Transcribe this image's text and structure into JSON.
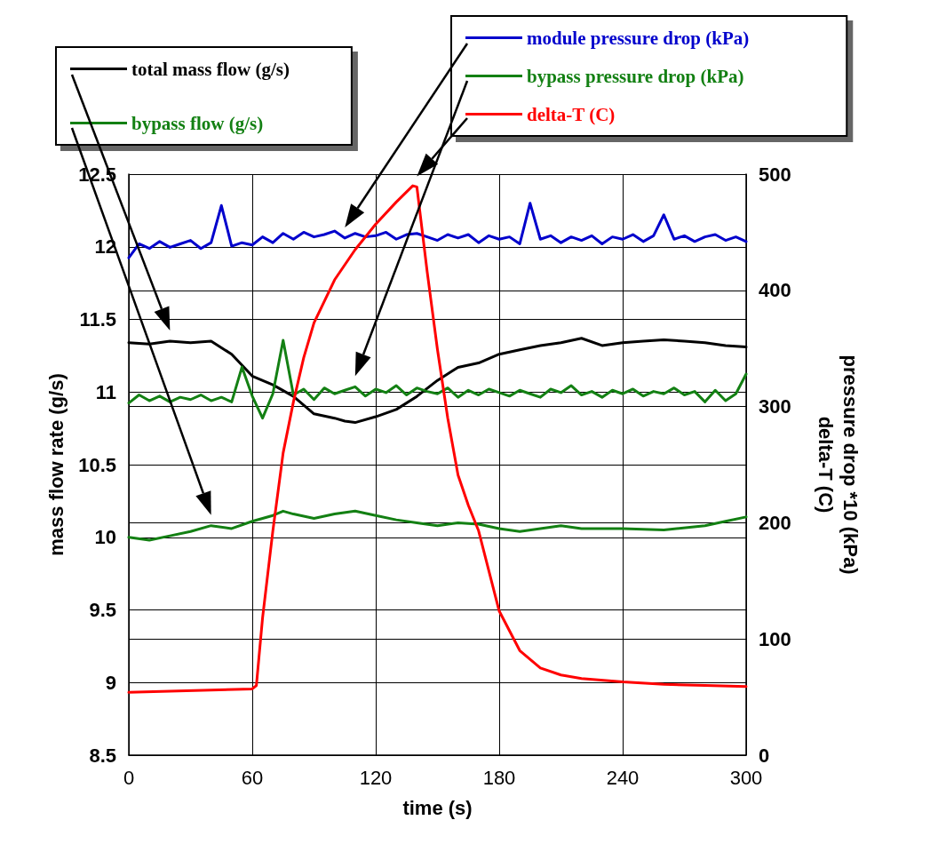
{
  "chart_data": {
    "type": "line",
    "xlabel": "time (s)",
    "ylabel": "mass flow rate (g/s)",
    "y2label": "pressure drop *10 (kPa)\ndelta-T (C)",
    "xlim": [
      0,
      300
    ],
    "xticks": [
      0,
      60,
      120,
      180,
      240,
      300
    ],
    "ylim": [
      8.5,
      12.5
    ],
    "yticks": [
      8.5,
      9,
      9.5,
      10,
      10.5,
      11,
      11.5,
      12,
      12.5
    ],
    "y2lim": [
      0,
      500
    ],
    "y2ticks": [
      0,
      100,
      200,
      300,
      400,
      500
    ],
    "grid": true,
    "legend": "top",
    "marker": "none",
    "line_style": "solid",
    "series": [
      {
        "name": "total mass flow (g/s)",
        "color": "#000000",
        "x": [
          0,
          10,
          20,
          30,
          40,
          50,
          60,
          70,
          80,
          90,
          100,
          105,
          110,
          120,
          130,
          140,
          150,
          160,
          170,
          180,
          190,
          200,
          210,
          220,
          230,
          240,
          250,
          260,
          270,
          280,
          290,
          300
        ],
        "values": [
          11.34,
          11.33,
          11.35,
          11.34,
          11.35,
          11.26,
          11.11,
          11.05,
          10.97,
          10.85,
          10.82,
          10.8,
          10.79,
          10.83,
          10.88,
          10.97,
          11.08,
          11.17,
          11.2,
          11.26,
          11.29,
          11.32,
          11.34,
          11.37,
          11.32,
          11.34,
          11.35,
          11.36,
          11.35,
          11.34,
          11.32,
          11.31
        ]
      },
      {
        "name": "bypass flow (g/s)",
        "color": "#138013",
        "x": [
          0,
          10,
          20,
          30,
          40,
          50,
          60,
          70,
          75,
          80,
          90,
          100,
          110,
          120,
          130,
          140,
          150,
          160,
          170,
          180,
          190,
          200,
          210,
          220,
          240,
          260,
          280,
          290,
          300
        ],
        "values": [
          10.0,
          9.98,
          10.01,
          10.04,
          10.08,
          10.06,
          10.11,
          10.15,
          10.18,
          10.16,
          10.13,
          10.16,
          10.18,
          10.15,
          10.12,
          10.1,
          10.08,
          10.1,
          10.09,
          10.06,
          10.04,
          10.06,
          10.08,
          10.06,
          10.06,
          10.05,
          10.08,
          10.11,
          10.14
        ]
      },
      {
        "name": "module pressure drop (kPa)",
        "color": "#0000cc",
        "axis": "y2",
        "x": [
          0,
          5,
          10,
          15,
          20,
          25,
          30,
          35,
          40,
          45,
          50,
          55,
          60,
          65,
          70,
          75,
          80,
          85,
          90,
          95,
          100,
          105,
          110,
          115,
          120,
          125,
          130,
          135,
          140,
          145,
          150,
          155,
          160,
          165,
          170,
          175,
          180,
          185,
          190,
          195,
          200,
          205,
          210,
          215,
          220,
          225,
          230,
          235,
          240,
          245,
          250,
          255,
          260,
          265,
          270,
          275,
          280,
          285,
          290,
          295,
          300
        ],
        "values": [
          428,
          440,
          436,
          442,
          437,
          440,
          443,
          436,
          441,
          473,
          438,
          441,
          439,
          446,
          441,
          449,
          444,
          450,
          446,
          448,
          451,
          445,
          449,
          446,
          447,
          450,
          444,
          448,
          449,
          446,
          443,
          448,
          445,
          448,
          441,
          447,
          444,
          446,
          440,
          475,
          444,
          447,
          441,
          446,
          443,
          447,
          440,
          446,
          444,
          448,
          442,
          447,
          465,
          444,
          447,
          442,
          446,
          448,
          443,
          446,
          442
        ]
      },
      {
        "name": "bypass pressure drop (kPa)",
        "color": "#138013",
        "axis": "y2",
        "x": [
          0,
          5,
          10,
          15,
          20,
          25,
          30,
          35,
          40,
          45,
          50,
          55,
          60,
          65,
          70,
          75,
          80,
          85,
          90,
          95,
          100,
          105,
          110,
          115,
          120,
          125,
          130,
          135,
          140,
          145,
          150,
          155,
          160,
          165,
          170,
          175,
          180,
          185,
          190,
          195,
          200,
          205,
          210,
          215,
          220,
          225,
          230,
          235,
          240,
          245,
          250,
          255,
          260,
          265,
          270,
          275,
          280,
          285,
          290,
          295,
          300
        ],
        "values": [
          303,
          310,
          305,
          309,
          304,
          308,
          306,
          310,
          305,
          308,
          304,
          334,
          309,
          290,
          311,
          357,
          310,
          315,
          306,
          316,
          311,
          314,
          317,
          309,
          315,
          312,
          318,
          310,
          316,
          313,
          311,
          316,
          308,
          314,
          310,
          315,
          312,
          309,
          314,
          311,
          308,
          315,
          312,
          318,
          310,
          313,
          308,
          314,
          311,
          315,
          309,
          313,
          311,
          316,
          310,
          313,
          304,
          314,
          305,
          311,
          328
        ]
      },
      {
        "name": "delta-T (C)",
        "color": "#ff0000",
        "axis": "y2",
        "x": [
          0,
          60,
          62,
          65,
          70,
          75,
          80,
          85,
          90,
          100,
          110,
          120,
          130,
          138,
          140,
          145,
          150,
          155,
          160,
          165,
          170,
          180,
          190,
          200,
          210,
          220,
          240,
          260,
          280,
          300
        ],
        "values": [
          54,
          57,
          60,
          118,
          193,
          260,
          304,
          342,
          372,
          409,
          435,
          457,
          476,
          490,
          489,
          416,
          349,
          290,
          241,
          215,
          193,
          124,
          90,
          75,
          69,
          66,
          63,
          61,
          60,
          59
        ]
      }
    ]
  }
}
